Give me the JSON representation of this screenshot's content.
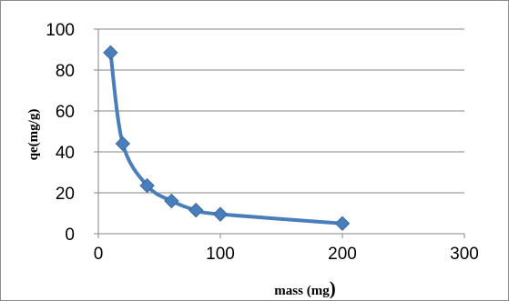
{
  "chart_data": {
    "type": "scatter",
    "title": "",
    "xlabel_main": "mass (mg",
    "xlabel_paren": ")",
    "ylabel": "qe(mg/g)",
    "xlim": [
      0,
      300
    ],
    "ylim": [
      0,
      100
    ],
    "x_ticks": [
      0,
      100,
      200,
      300
    ],
    "y_ticks": [
      0,
      20,
      40,
      60,
      80,
      100
    ],
    "grid": true,
    "legend": "none",
    "series": [
      {
        "x": [
          10,
          20,
          40,
          60,
          80,
          100,
          200
        ],
        "y": [
          88.5,
          44,
          23.5,
          16,
          11.5,
          9.5,
          5
        ],
        "color": "#4a7ebb",
        "marker": "diamond",
        "line": "smoothed"
      }
    ]
  }
}
